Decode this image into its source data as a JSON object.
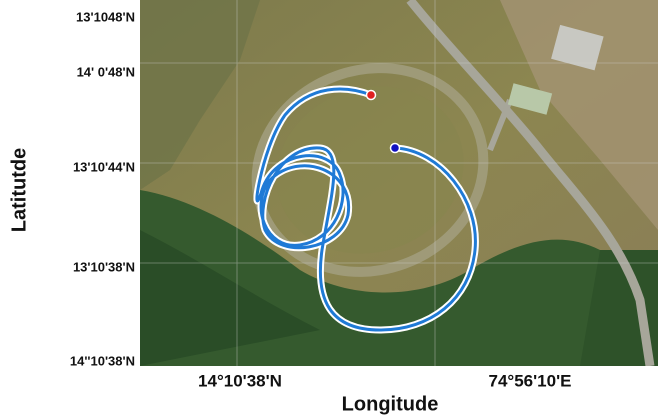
{
  "map": {
    "y_axis_label": "Latitutde",
    "x_axis_label": "Longitude",
    "y_tick_labels": [
      "13'1048'N",
      "14' 0'48'N",
      "13'10'44'N",
      "13'10'38'N",
      "14''10'38'N"
    ],
    "x_tick_labels": [
      "14°10'38'N",
      "74°56'10'E"
    ]
  }
}
